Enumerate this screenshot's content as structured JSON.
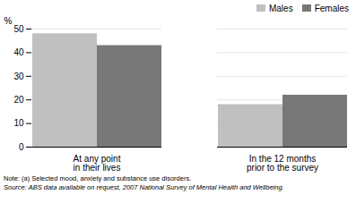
{
  "chart_data": {
    "type": "bar",
    "categories": [
      "At any point\nin their lives",
      "In the 12 months\nprior to the survey"
    ],
    "series": [
      {
        "name": "Males",
        "color": "#c0c0c0",
        "values": [
          48,
          18
        ]
      },
      {
        "name": "Females",
        "color": "#787878",
        "values": [
          43,
          22
        ]
      }
    ],
    "ylabel": "%",
    "ylim": [
      0,
      50
    ],
    "yticks": [
      0,
      10,
      20,
      30,
      40,
      50
    ],
    "grid": true,
    "legend": "upper right",
    "annotations": [
      "Note:  (a) Selected mood, anxiety and substance use disorders.",
      "Source: ABS data available on request, 2007 National Survey of Mental Health and Wellbeing."
    ]
  }
}
